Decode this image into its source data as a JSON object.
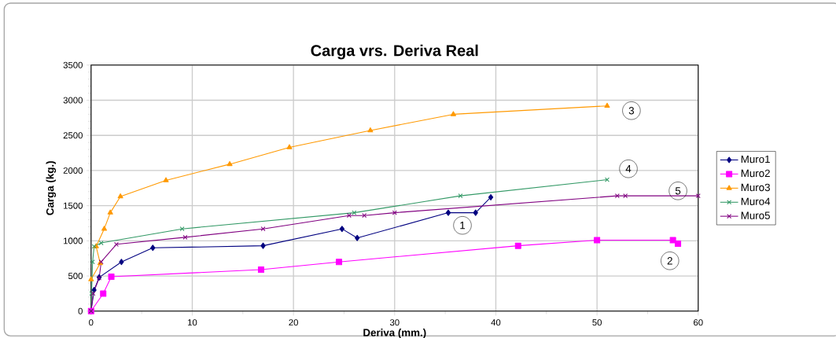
{
  "chart_data": {
    "type": "line",
    "title": "Carga vrs. Deriva Real",
    "xlabel": "Deriva (mm.)",
    "ylabel": "Carga (kg.)",
    "xlim": [
      0,
      60
    ],
    "xticks": [
      0,
      10,
      20,
      30,
      40,
      50,
      60
    ],
    "ylim": [
      0,
      3500
    ],
    "yticks": [
      0,
      500,
      1000,
      1500,
      2000,
      2500,
      3000,
      3500
    ],
    "grid": true,
    "legend": "right",
    "line_style": "solid",
    "series": [
      {
        "name": "Muro1",
        "color": "#000080",
        "marker": "diamond",
        "x": [
          0,
          0.3,
          0.8,
          3,
          6.1,
          17,
          24.8,
          26.3,
          35.3,
          38,
          39.5
        ],
        "values": [
          0,
          300,
          480,
          700,
          900,
          930,
          1170,
          1040,
          1400,
          1400,
          1620
        ]
      },
      {
        "name": "Muro2",
        "color": "#ff00ff",
        "marker": "square",
        "x": [
          0,
          1.2,
          2,
          16.8,
          24.5,
          42.2,
          50,
          57.5,
          58
        ],
        "values": [
          0,
          250,
          490,
          590,
          700,
          930,
          1010,
          1010,
          960
        ]
      },
      {
        "name": "Muro3",
        "color": "#ff9900",
        "marker": "triangle",
        "x": [
          0,
          0.9,
          0.5,
          1.3,
          1.9,
          2.9,
          7.4,
          13.7,
          19.6,
          27.6,
          35.8,
          51
        ],
        "values": [
          450,
          680,
          920,
          1170,
          1400,
          1630,
          1860,
          2090,
          2330,
          2570,
          2800,
          2920
        ]
      },
      {
        "name": "Muro4",
        "color": "#339966",
        "marker": "cross",
        "x": [
          0,
          0.05,
          0.15,
          0.3,
          1,
          9,
          26,
          36.5,
          51
        ],
        "values": [
          0,
          250,
          700,
          920,
          970,
          1170,
          1400,
          1640,
          1870
        ]
      },
      {
        "name": "Muro5",
        "color": "#800080",
        "marker": "cross",
        "x": [
          0,
          0.2,
          0.8,
          1,
          2.5,
          9.3,
          17,
          25.5,
          27,
          30,
          52,
          52.8,
          60
        ],
        "values": [
          0,
          250,
          470,
          700,
          950,
          1050,
          1170,
          1360,
          1360,
          1400,
          1640,
          1640,
          1640
        ]
      }
    ],
    "annotations": [
      {
        "text": "1",
        "x": 36.7,
        "y": 1220
      },
      {
        "text": "2",
        "x": 57.2,
        "y": 716
      },
      {
        "text": "3",
        "x": 53.4,
        "y": 2852
      },
      {
        "text": "4",
        "x": 53.1,
        "y": 2025
      },
      {
        "text": "5",
        "x": 58,
        "y": 1711
      }
    ]
  }
}
